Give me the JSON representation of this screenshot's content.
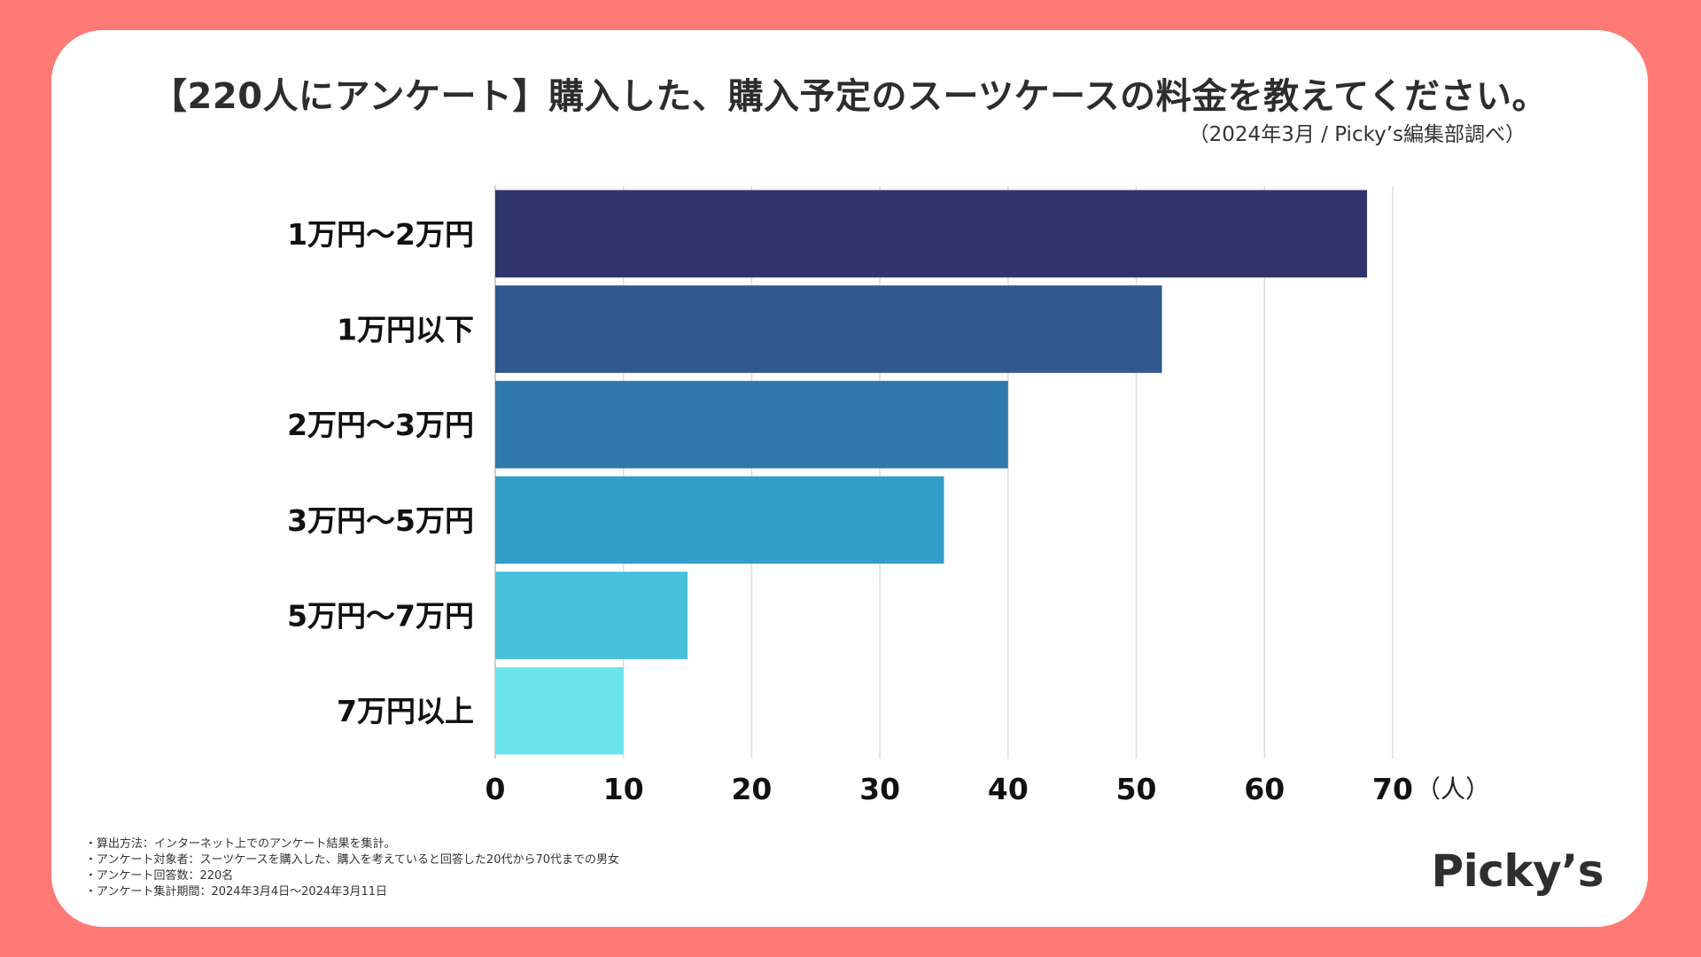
{
  "header": {
    "title": "【220人にアンケート】購入した、購入予定のスーツケースの料金を教えてください。",
    "source": "（2024年3月 / Picky’s編集部調べ）"
  },
  "chart_data": {
    "type": "bar",
    "orientation": "horizontal",
    "title": "【220人にアンケート】購入した、購入予定のスーツケースの料金を教えてください。",
    "categories": [
      "1万円〜2万円",
      "1万円以下",
      "2万円〜3万円",
      "3万円〜5万円",
      "5万円〜7万円",
      "7万円以上"
    ],
    "values": [
      68,
      52,
      40,
      35,
      15,
      10
    ],
    "colors": [
      "#30346b",
      "#30578e",
      "#2e78ac",
      "#329fc8",
      "#47c1da",
      "#6ce5e8"
    ],
    "xticks": [
      "0",
      "10",
      "20",
      "30",
      "40",
      "50",
      "60",
      "70"
    ],
    "xlim": [
      0,
      70
    ],
    "xlabel": "（人）",
    "ylabel": "",
    "grid": "vertical"
  },
  "notes": [
    "・算出方法：インターネット上でのアンケート結果を集計。",
    "・アンケート対象者：スーツケースを購入した、購入を考えていると回答した20代から70代までの男女",
    "・アンケート回答数：220名",
    "・アンケート集計期間：2024年3月4日〜2024年3月11日"
  ],
  "brand": {
    "logo_text": "Picky’s"
  }
}
